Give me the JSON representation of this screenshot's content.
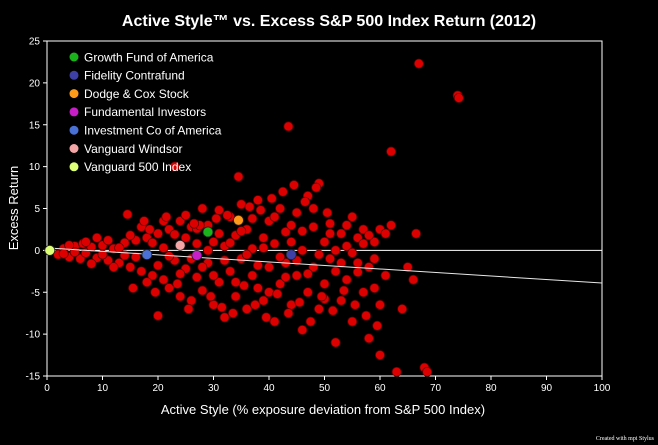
{
  "chart_data": {
    "type": "scatter",
    "title": "Active Style™ vs. Excess S&P 500 Index Return (2012)",
    "xlabel": "Active Style (% exposure deviation from S&P 500 Index)",
    "ylabel": "Excess Return",
    "xlim": [
      0,
      100
    ],
    "ylim": [
      -15,
      25
    ],
    "xticks": [
      0,
      10,
      20,
      30,
      40,
      50,
      60,
      70,
      80,
      90,
      100
    ],
    "yticks": [
      -15,
      -10,
      -5,
      0,
      5,
      10,
      15,
      20,
      25
    ],
    "grid": false,
    "legend_position": "top-left",
    "zero_line": true,
    "trend_line": {
      "x": [
        0,
        100
      ],
      "y": [
        0.3,
        -3.9
      ]
    },
    "background_color": "#000000",
    "axis_color": "#ffffff",
    "credit": "Created with mpi Stylus",
    "highlighted": [
      {
        "name": "Growth Fund of America",
        "color": "#1bb31b",
        "x": 29,
        "y": 2.2
      },
      {
        "name": "Fidelity Contrafund",
        "color": "#3f3fa8",
        "x": 44,
        "y": -0.5
      },
      {
        "name": "Dodge & Cox Stock",
        "color": "#ff9a1a",
        "x": 34.5,
        "y": 3.6
      },
      {
        "name": "Fundamental Investors",
        "color": "#c81ec8",
        "x": 27,
        "y": -0.6
      },
      {
        "name": "Investment Co of America",
        "color": "#4a72d6",
        "x": 18,
        "y": -0.5
      },
      {
        "name": "Vanguard Windsor",
        "color": "#f4a6a6",
        "x": 24,
        "y": 0.6
      },
      {
        "name": "Vanguard 500 Index",
        "color": "#ddff77",
        "x": 0.5,
        "y": 0
      }
    ],
    "funds_series": {
      "color": "#dd0000",
      "points": [
        [
          2,
          -0.5
        ],
        [
          3,
          0.2
        ],
        [
          4,
          -0.8
        ],
        [
          5,
          0.5
        ],
        [
          6,
          -1.0
        ],
        [
          6.5,
          0.8
        ],
        [
          7,
          -0.3
        ],
        [
          8,
          0.4
        ],
        [
          9,
          -0.9
        ],
        [
          10,
          0.6
        ],
        [
          11,
          -1.2
        ],
        [
          12,
          0.2
        ],
        [
          13,
          -1.5
        ],
        [
          14,
          0.9
        ],
        [
          14.5,
          4.3
        ],
        [
          15,
          -2.0
        ],
        [
          16,
          1.2
        ],
        [
          17,
          -2.5
        ],
        [
          18,
          1.5
        ],
        [
          19,
          -3.0
        ],
        [
          20,
          2.0
        ],
        [
          20,
          -7.8
        ],
        [
          21,
          -3.5
        ],
        [
          21,
          0.3
        ],
        [
          22,
          2.5
        ],
        [
          22,
          -4.5
        ],
        [
          23,
          -1.2
        ],
        [
          23,
          10.0
        ],
        [
          24,
          3.5
        ],
        [
          24,
          -5.5
        ],
        [
          25,
          -2.2
        ],
        [
          25,
          1.5
        ],
        [
          26,
          2.8
        ],
        [
          26,
          -6.0
        ],
        [
          27,
          -3.2
        ],
        [
          27,
          0.8
        ],
        [
          28,
          5.0
        ],
        [
          28,
          -4.8
        ],
        [
          29,
          -1.5
        ],
        [
          29,
          3.0
        ],
        [
          30,
          -6.5
        ],
        [
          30,
          1.0
        ],
        [
          31,
          2.0
        ],
        [
          31,
          -3.8
        ],
        [
          32,
          -8.0
        ],
        [
          32,
          0.5
        ],
        [
          33,
          4.0
        ],
        [
          33,
          -2.5
        ],
        [
          34,
          -5.5
        ],
        [
          34,
          1.8
        ],
        [
          34.5,
          8.8
        ],
        [
          35,
          -1.0
        ],
        [
          35,
          5.5
        ],
        [
          36,
          -7.0
        ],
        [
          36,
          2.5
        ],
        [
          37,
          -3.0
        ],
        [
          37,
          0.2
        ],
        [
          38,
          6.0
        ],
        [
          38,
          -4.5
        ],
        [
          39,
          1.5
        ],
        [
          39,
          -6.0
        ],
        [
          40,
          3.5
        ],
        [
          40,
          -2.0
        ],
        [
          41,
          -8.5
        ],
        [
          41,
          0.8
        ],
        [
          42,
          5.0
        ],
        [
          42,
          -4.0
        ],
        [
          43,
          -1.5
        ],
        [
          43,
          2.2
        ],
        [
          43.5,
          14.8
        ],
        [
          44,
          -6.5
        ],
        [
          44,
          1.0
        ],
        [
          45,
          4.5
        ],
        [
          45,
          -3.0
        ],
        [
          46,
          -9.5
        ],
        [
          46,
          0.0
        ],
        [
          47,
          6.5
        ],
        [
          47,
          -5.0
        ],
        [
          48,
          -2.0
        ],
        [
          48,
          2.8
        ],
        [
          49,
          8.0
        ],
        [
          49,
          -7.0
        ],
        [
          50,
          1.0
        ],
        [
          50,
          -4.0
        ],
        [
          51,
          -1.0
        ],
        [
          51,
          3.2
        ],
        [
          52,
          -11.0
        ],
        [
          52,
          -2.5
        ],
        [
          53,
          2.0
        ],
        [
          53,
          -6.0
        ],
        [
          54,
          0.5
        ],
        [
          54,
          -3.5
        ],
        [
          55,
          4.0
        ],
        [
          55,
          -8.5
        ],
        [
          56,
          -1.5
        ],
        [
          56,
          1.5
        ],
        [
          57,
          -5.0
        ],
        [
          57,
          2.5
        ],
        [
          58,
          -10.5
        ],
        [
          58,
          -2.0
        ],
        [
          59,
          1.0
        ],
        [
          59,
          -4.5
        ],
        [
          60,
          2.5
        ],
        [
          60,
          -12.5
        ],
        [
          61,
          2.0
        ],
        [
          61,
          -3.0
        ],
        [
          62,
          11.8
        ],
        [
          62,
          3.0
        ],
        [
          63,
          -14.5
        ],
        [
          64,
          -7.0
        ],
        [
          65,
          -2.0
        ],
        [
          66,
          -3.5
        ],
        [
          66.5,
          2.0
        ],
        [
          67,
          22.3
        ],
        [
          68,
          -14.0
        ],
        [
          68.5,
          -14.5
        ],
        [
          74,
          18.5
        ],
        [
          74.2,
          18.2
        ],
        [
          15,
          1.8
        ],
        [
          16,
          -0.8
        ],
        [
          17,
          2.8
        ],
        [
          18,
          -3.8
        ],
        [
          19,
          0.9
        ],
        [
          20,
          -1.8
        ],
        [
          21,
          3.5
        ],
        [
          22,
          -0.7
        ],
        [
          23,
          1.9
        ],
        [
          24,
          -2.8
        ],
        [
          25,
          4.2
        ],
        [
          26,
          -1.0
        ],
        [
          27,
          2.6
        ],
        [
          28,
          -2.0
        ],
        [
          29,
          0.0
        ],
        [
          30,
          -3.0
        ],
        [
          31,
          4.8
        ],
        [
          32,
          -1.2
        ],
        [
          33,
          0.9
        ],
        [
          34,
          -3.8
        ],
        [
          35,
          2.3
        ],
        [
          36,
          -0.5
        ],
        [
          37,
          3.8
        ],
        [
          38,
          -1.8
        ],
        [
          39,
          0.3
        ],
        [
          40,
          -5.0
        ],
        [
          41,
          4.0
        ],
        [
          42,
          -0.8
        ],
        [
          43,
          -3.2
        ],
        [
          44,
          3.0
        ],
        [
          45,
          -1.2
        ],
        [
          46,
          2.3
        ],
        [
          47,
          -2.8
        ],
        [
          48,
          5.0
        ],
        [
          49,
          -0.5
        ],
        [
          50,
          -5.8
        ],
        [
          51,
          2.0
        ],
        [
          52,
          0.0
        ],
        [
          53,
          -1.5
        ],
        [
          54,
          3.0
        ],
        [
          55,
          -0.3
        ],
        [
          56,
          -2.6
        ],
        [
          57,
          0.8
        ],
        [
          58,
          1.8
        ],
        [
          59,
          -1.0
        ],
        [
          60,
          -6.5
        ],
        [
          10,
          -0.5
        ],
        [
          11,
          1.2
        ],
        [
          12,
          -2.0
        ],
        [
          13,
          0.3
        ],
        [
          14,
          -0.6
        ],
        [
          9,
          1.5
        ],
        [
          8,
          -1.6
        ],
        [
          7,
          1.0
        ],
        [
          5,
          -0.2
        ],
        [
          4,
          0.6
        ],
        [
          3,
          -0.4
        ],
        [
          15.5,
          -4.5
        ],
        [
          17.5,
          3.5
        ],
        [
          19.5,
          -5.0
        ],
        [
          21.5,
          4.0
        ],
        [
          23.5,
          -4.0
        ],
        [
          25.5,
          -7.0
        ],
        [
          27.5,
          3.0
        ],
        [
          29.5,
          -5.5
        ],
        [
          31.5,
          -6.8
        ],
        [
          33.5,
          -7.5
        ],
        [
          35.5,
          -4.2
        ],
        [
          37.5,
          -6.5
        ],
        [
          39.5,
          -8.0
        ],
        [
          41.5,
          -5.2
        ],
        [
          43.5,
          -7.5
        ],
        [
          45.5,
          -6.2
        ],
        [
          47.5,
          -8.5
        ],
        [
          49.5,
          -5.5
        ],
        [
          51.5,
          -7.2
        ],
        [
          53.5,
          -4.8
        ],
        [
          55.5,
          -6.5
        ],
        [
          57.5,
          -7.8
        ],
        [
          59.5,
          -9.0
        ],
        [
          42.5,
          7.0
        ],
        [
          46.5,
          5.8
        ],
        [
          48.5,
          7.5
        ],
        [
          50.5,
          4.5
        ],
        [
          36.5,
          5.2
        ],
        [
          38.5,
          4.8
        ],
        [
          40.5,
          6.2
        ],
        [
          44.5,
          7.8
        ],
        [
          30.5,
          3.8
        ],
        [
          32.5,
          4.2
        ],
        [
          26.5,
          3.2
        ],
        [
          18.5,
          2.5
        ]
      ]
    }
  }
}
